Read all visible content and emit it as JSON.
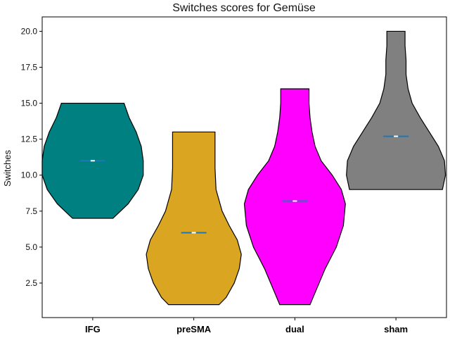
{
  "chart_data": {
    "type": "violin",
    "title": "Switches scores for Gemüse",
    "xlabel": "",
    "ylabel": "Switches",
    "categories": [
      "IFG",
      "preSMA",
      "dual",
      "sham"
    ],
    "ylim": [
      0.1,
      21.0
    ],
    "yticks": [
      "2.5",
      "5.0",
      "7.5",
      "10.0",
      "12.5",
      "15.0",
      "17.5",
      "20.0"
    ],
    "grid": false,
    "colors": [
      "#008080",
      "#DAA520",
      "#FF00FF",
      "#808080"
    ],
    "median_color": "#1f77b4",
    "violins": [
      {
        "category": "IFG",
        "min": 7.0,
        "max": 15.0,
        "median": 11.0,
        "profile": [
          [
            7.0,
            0.2
          ],
          [
            8.0,
            0.35
          ],
          [
            9.0,
            0.45
          ],
          [
            10.0,
            0.5
          ],
          [
            11.0,
            0.5
          ],
          [
            12.0,
            0.48
          ],
          [
            13.0,
            0.43
          ],
          [
            14.0,
            0.36
          ],
          [
            15.0,
            0.31
          ]
        ]
      },
      {
        "category": "preSMA",
        "min": 1.0,
        "max": 13.0,
        "median": 6.0,
        "profile": [
          [
            1.0,
            0.25
          ],
          [
            1.5,
            0.32
          ],
          [
            2.5,
            0.4
          ],
          [
            3.5,
            0.45
          ],
          [
            4.5,
            0.47
          ],
          [
            5.5,
            0.43
          ],
          [
            6.5,
            0.35
          ],
          [
            7.5,
            0.28
          ],
          [
            9.0,
            0.22
          ],
          [
            10.5,
            0.21
          ],
          [
            12.0,
            0.21
          ],
          [
            13.0,
            0.21
          ]
        ]
      },
      {
        "category": "dual",
        "min": 1.0,
        "max": 16.0,
        "median": 8.2,
        "profile": [
          [
            1.0,
            0.15
          ],
          [
            2.0,
            0.21
          ],
          [
            3.5,
            0.3
          ],
          [
            5.0,
            0.41
          ],
          [
            6.5,
            0.48
          ],
          [
            8.0,
            0.5
          ],
          [
            9.0,
            0.46
          ],
          [
            10.0,
            0.37
          ],
          [
            11.0,
            0.26
          ],
          [
            12.0,
            0.2
          ],
          [
            13.0,
            0.17
          ],
          [
            14.0,
            0.15
          ],
          [
            15.0,
            0.14
          ],
          [
            16.0,
            0.14
          ]
        ]
      },
      {
        "category": "sham",
        "min": 9.0,
        "max": 20.0,
        "median": 12.7,
        "profile": [
          [
            9.0,
            0.46
          ],
          [
            10.0,
            0.49
          ],
          [
            11.0,
            0.48
          ],
          [
            12.0,
            0.42
          ],
          [
            13.0,
            0.33
          ],
          [
            14.0,
            0.24
          ],
          [
            15.0,
            0.16
          ],
          [
            16.0,
            0.12
          ],
          [
            17.0,
            0.1
          ],
          [
            18.0,
            0.1
          ],
          [
            19.0,
            0.09
          ],
          [
            20.0,
            0.09
          ]
        ]
      }
    ]
  }
}
